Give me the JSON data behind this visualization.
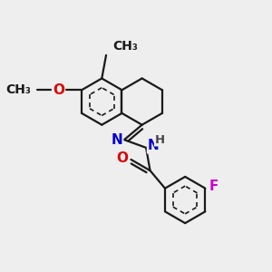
{
  "background_color": "#eeeeee",
  "bond_color": "#1a1a1a",
  "atom_colors": {
    "O": "#dd0000",
    "N": "#0000cc",
    "F": "#cc00cc",
    "H": "#444444",
    "C": "#1a1a1a"
  },
  "bond_width": 1.6,
  "font_size_atom": 11,
  "font_size_small": 9.5
}
